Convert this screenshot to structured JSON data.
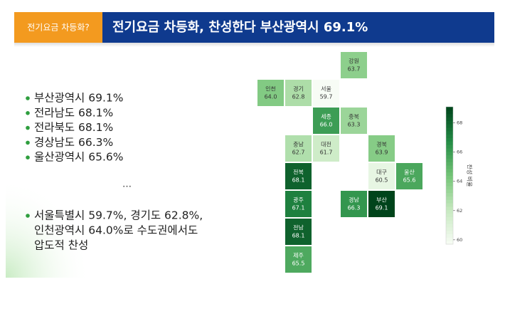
{
  "header": {
    "badge": "전기요금 차등화?",
    "title": "전기요금 차등화, 찬성한다 부산광역시 69.1%"
  },
  "bullets": [
    "부산광역시 69.1%",
    "전라남도 68.1%",
    "전라북도 68.1%",
    "경상남도 66.3%",
    "울산광역시 65.6%"
  ],
  "ellipsis": "…",
  "note": [
    "서울특별시 59.7%, 경기도 62.8%,",
    "인천광역시 64.0%로 수도권에서도",
    "압도적 찬성"
  ],
  "chart_data": {
    "type": "tilemap",
    "categories": [
      "강원",
      "인천",
      "경기",
      "서울",
      "세종",
      "충북",
      "충남",
      "대전",
      "경북",
      "전북",
      "대구",
      "울산",
      "광주",
      "경남",
      "부산",
      "전남",
      "제주"
    ],
    "values": [
      63.7,
      64.0,
      62.8,
      59.7,
      66.0,
      63.3,
      62.7,
      61.7,
      63.9,
      68.1,
      60.5,
      65.6,
      67.1,
      66.3,
      69.1,
      68.1,
      65.5
    ],
    "value_labels": [
      "63.7",
      "64.0",
      "62.8",
      "59.7",
      "66.0",
      "63.3",
      "62.7",
      "61.7",
      "63.9",
      "68.1",
      "60.5",
      "65.6",
      "67.1",
      "66.3",
      "69.1",
      "68.1",
      "65.5"
    ],
    "colormap": "Greens",
    "clim": [
      59.7,
      69.1
    ],
    "cticks": [
      60,
      62,
      64,
      66,
      68
    ],
    "colorbar_label": "찬성 비율"
  }
}
